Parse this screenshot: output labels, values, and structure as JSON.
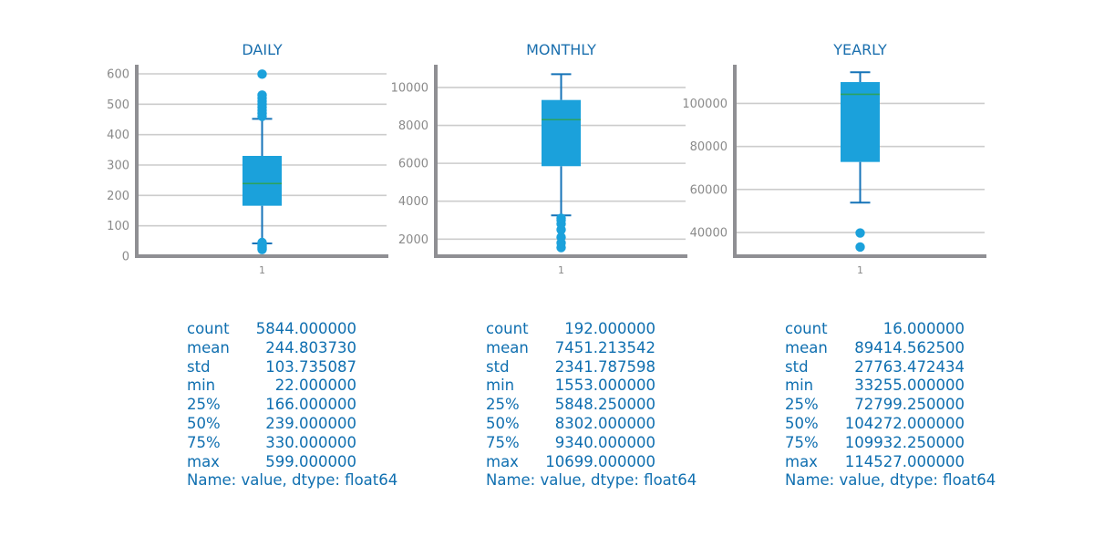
{
  "colors": {
    "title": "#1a6fae",
    "box": "#1ba1db",
    "whisker": "#1573b8",
    "median": "#2ca25f",
    "grid": "#cccccc",
    "axis": "#8f8f93",
    "tick": "#8a8a8a",
    "stats": "#0f6fb0"
  },
  "chart_data": [
    {
      "type": "box",
      "title": "DAILY",
      "xlabel": "",
      "ylabel": "",
      "categories": [
        "1"
      ],
      "ylim": [
        0,
        630
      ],
      "yticks": [
        0,
        100,
        200,
        300,
        400,
        500,
        600
      ],
      "grid": true,
      "box": {
        "whislo": 42,
        "q1": 166,
        "med": 239,
        "q3": 330,
        "whishi": 452
      },
      "fliers": [
        22,
        26,
        30,
        35,
        40,
        45,
        460,
        470,
        480,
        490,
        500,
        510,
        520,
        530,
        599
      ]
    },
    {
      "type": "box",
      "title": "MONTHLY",
      "xlabel": "",
      "ylabel": "",
      "categories": [
        "1"
      ],
      "ylim": [
        1100,
        11200
      ],
      "yticks": [
        2000,
        4000,
        6000,
        8000,
        10000
      ],
      "grid": true,
      "box": {
        "whislo": 3250,
        "q1": 5848.25,
        "med": 8302,
        "q3": 9340,
        "whishi": 10699
      },
      "fliers": [
        1553,
        1800,
        2100,
        2500,
        2800,
        3000,
        3100
      ]
    },
    {
      "type": "box",
      "title": "YEARLY",
      "xlabel": "",
      "ylabel": "",
      "categories": [
        "1"
      ],
      "ylim": [
        29000,
        118000
      ],
      "yticks": [
        40000,
        60000,
        80000,
        100000
      ],
      "grid": true,
      "box": {
        "whislo": 53900,
        "q1": 72799.25,
        "med": 104272,
        "q3": 109932.25,
        "whishi": 114527
      },
      "fliers": [
        33255,
        39800
      ]
    }
  ],
  "stats": [
    {
      "rows": [
        {
          "key": "count",
          "value": "5844.000000"
        },
        {
          "key": "mean",
          "value": "244.803730"
        },
        {
          "key": "std",
          "value": "103.735087"
        },
        {
          "key": "min",
          "value": "22.000000"
        },
        {
          "key": "25%",
          "value": "166.000000"
        },
        {
          "key": "50%",
          "value": "239.000000"
        },
        {
          "key": "75%",
          "value": "330.000000"
        },
        {
          "key": "max",
          "value": "599.000000"
        }
      ],
      "footer": "Name: value, dtype: float64"
    },
    {
      "rows": [
        {
          "key": "count",
          "value": "192.000000"
        },
        {
          "key": "mean",
          "value": "7451.213542"
        },
        {
          "key": "std",
          "value": "2341.787598"
        },
        {
          "key": "min",
          "value": "1553.000000"
        },
        {
          "key": "25%",
          "value": "5848.250000"
        },
        {
          "key": "50%",
          "value": "8302.000000"
        },
        {
          "key": "75%",
          "value": "9340.000000"
        },
        {
          "key": "max",
          "value": "10699.000000"
        }
      ],
      "footer": "Name: value, dtype: float64"
    },
    {
      "rows": [
        {
          "key": "count",
          "value": "16.000000"
        },
        {
          "key": "mean",
          "value": "89414.562500"
        },
        {
          "key": "std",
          "value": "27763.472434"
        },
        {
          "key": "min",
          "value": "33255.000000"
        },
        {
          "key": "25%",
          "value": "72799.250000"
        },
        {
          "key": "50%",
          "value": "104272.000000"
        },
        {
          "key": "75%",
          "value": "109932.250000"
        },
        {
          "key": "max",
          "value": "114527.000000"
        }
      ],
      "footer": "Name: value, dtype: float64"
    }
  ]
}
